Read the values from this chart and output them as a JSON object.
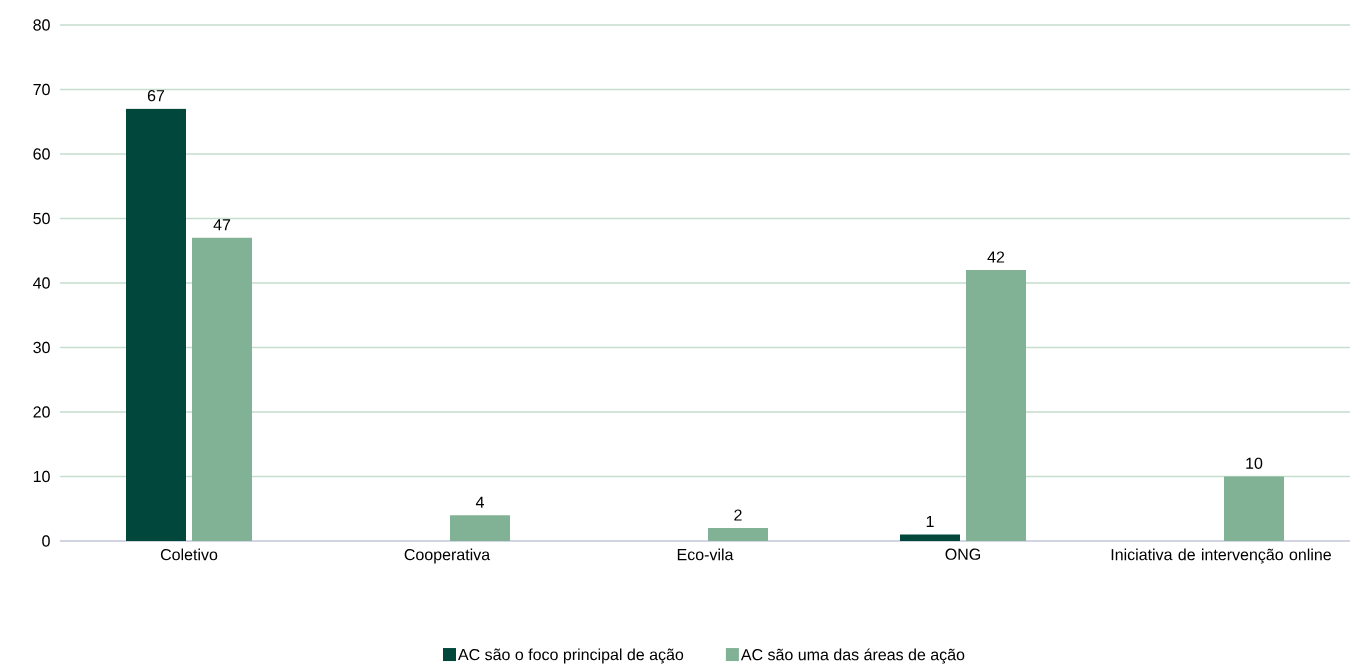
{
  "chart_data": {
    "type": "bar",
    "categories": [
      "Coletivo",
      "Cooperativa",
      "Eco-vila",
      "ONG",
      "Iniciativa de intervenção online"
    ],
    "series": [
      {
        "name": "AC são o foco principal de ação",
        "color": "#02473c",
        "values": [
          67,
          null,
          null,
          1,
          null
        ]
      },
      {
        "name": "AC são uma das áreas de ação",
        "color": "#82b296",
        "values": [
          47,
          4,
          2,
          42,
          10
        ]
      }
    ],
    "ylim": [
      0,
      80
    ],
    "yticks": [
      0,
      10,
      20,
      30,
      40,
      50,
      60,
      70,
      80
    ],
    "grid": "y",
    "legend": "bottom",
    "data_labels": true
  }
}
